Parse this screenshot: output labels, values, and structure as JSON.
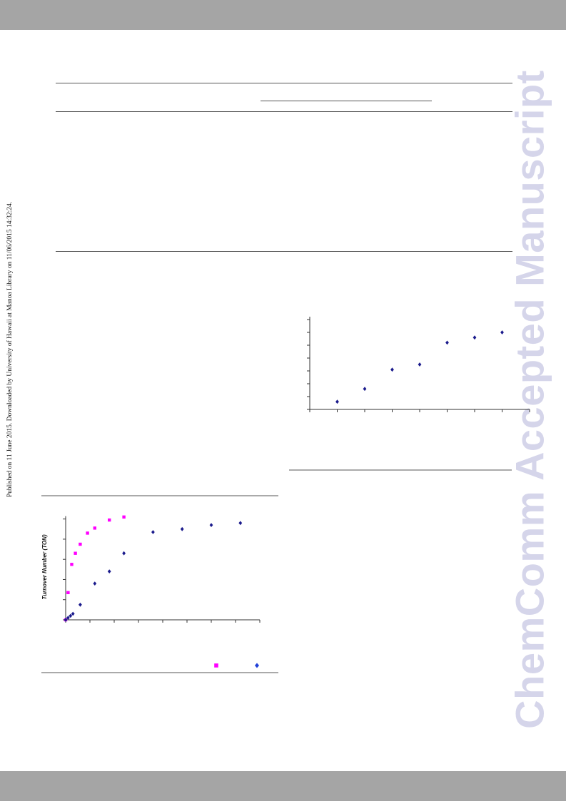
{
  "page": {
    "side_note": "Published on 11 June 2015. Downloaded by University of Hawaii at Manoa Library on 11/06/2015 14:32:24.",
    "watermark": "ChemComm Accepted Manuscript"
  },
  "colors": {
    "bar": "#a5a5a5",
    "watermark": "#d5d5ea",
    "series_blue": "#1a1a8c",
    "series_magenta": "#ff00ff"
  },
  "chart_data": [
    {
      "type": "scatter",
      "title": "",
      "xlabel": "",
      "ylabel": "",
      "xlim": [
        0,
        8
      ],
      "ylim": [
        0,
        7
      ],
      "x_ticks": [
        0,
        1,
        2,
        3,
        4,
        5,
        6,
        7,
        8
      ],
      "y_ticks": [
        0,
        1,
        2,
        3,
        4,
        5,
        6,
        7
      ],
      "grid": false,
      "series": [
        {
          "color": "#1a1a8c",
          "marker": "diamond",
          "x": [
            1,
            2,
            3,
            4,
            5,
            6,
            7
          ],
          "y": [
            0.6,
            1.6,
            3.1,
            3.5,
            5.2,
            5.6,
            6.0
          ]
        }
      ]
    },
    {
      "type": "scatter",
      "title": "",
      "xlabel": "",
      "ylabel": "Turnover Number (TON)",
      "xlim": [
        0,
        8
      ],
      "ylim": [
        0,
        5.2
      ],
      "x_ticks": [
        0,
        1,
        2,
        3,
        4,
        5,
        6,
        7,
        8
      ],
      "y_ticks": [
        0,
        1,
        2,
        3,
        4,
        5
      ],
      "grid": false,
      "legend": "bottom-right",
      "series": [
        {
          "color": "#ff00ff",
          "marker": "square",
          "x": [
            0,
            0.1,
            0.25,
            0.4,
            0.6,
            0.9,
            1.2,
            1.8,
            2.4
          ],
          "y": [
            0,
            1.35,
            2.75,
            3.3,
            3.75,
            4.3,
            4.55,
            4.95,
            5.1
          ]
        },
        {
          "color": "#1a1a8c",
          "marker": "diamond",
          "x": [
            0,
            0.1,
            0.2,
            0.3,
            0.6,
            1.2,
            1.8,
            2.4,
            3.6,
            4.8,
            6.0,
            7.2
          ],
          "y": [
            0,
            0.1,
            0.2,
            0.3,
            0.75,
            1.8,
            2.4,
            3.3,
            4.35,
            4.5,
            4.7,
            4.8
          ]
        }
      ]
    }
  ]
}
